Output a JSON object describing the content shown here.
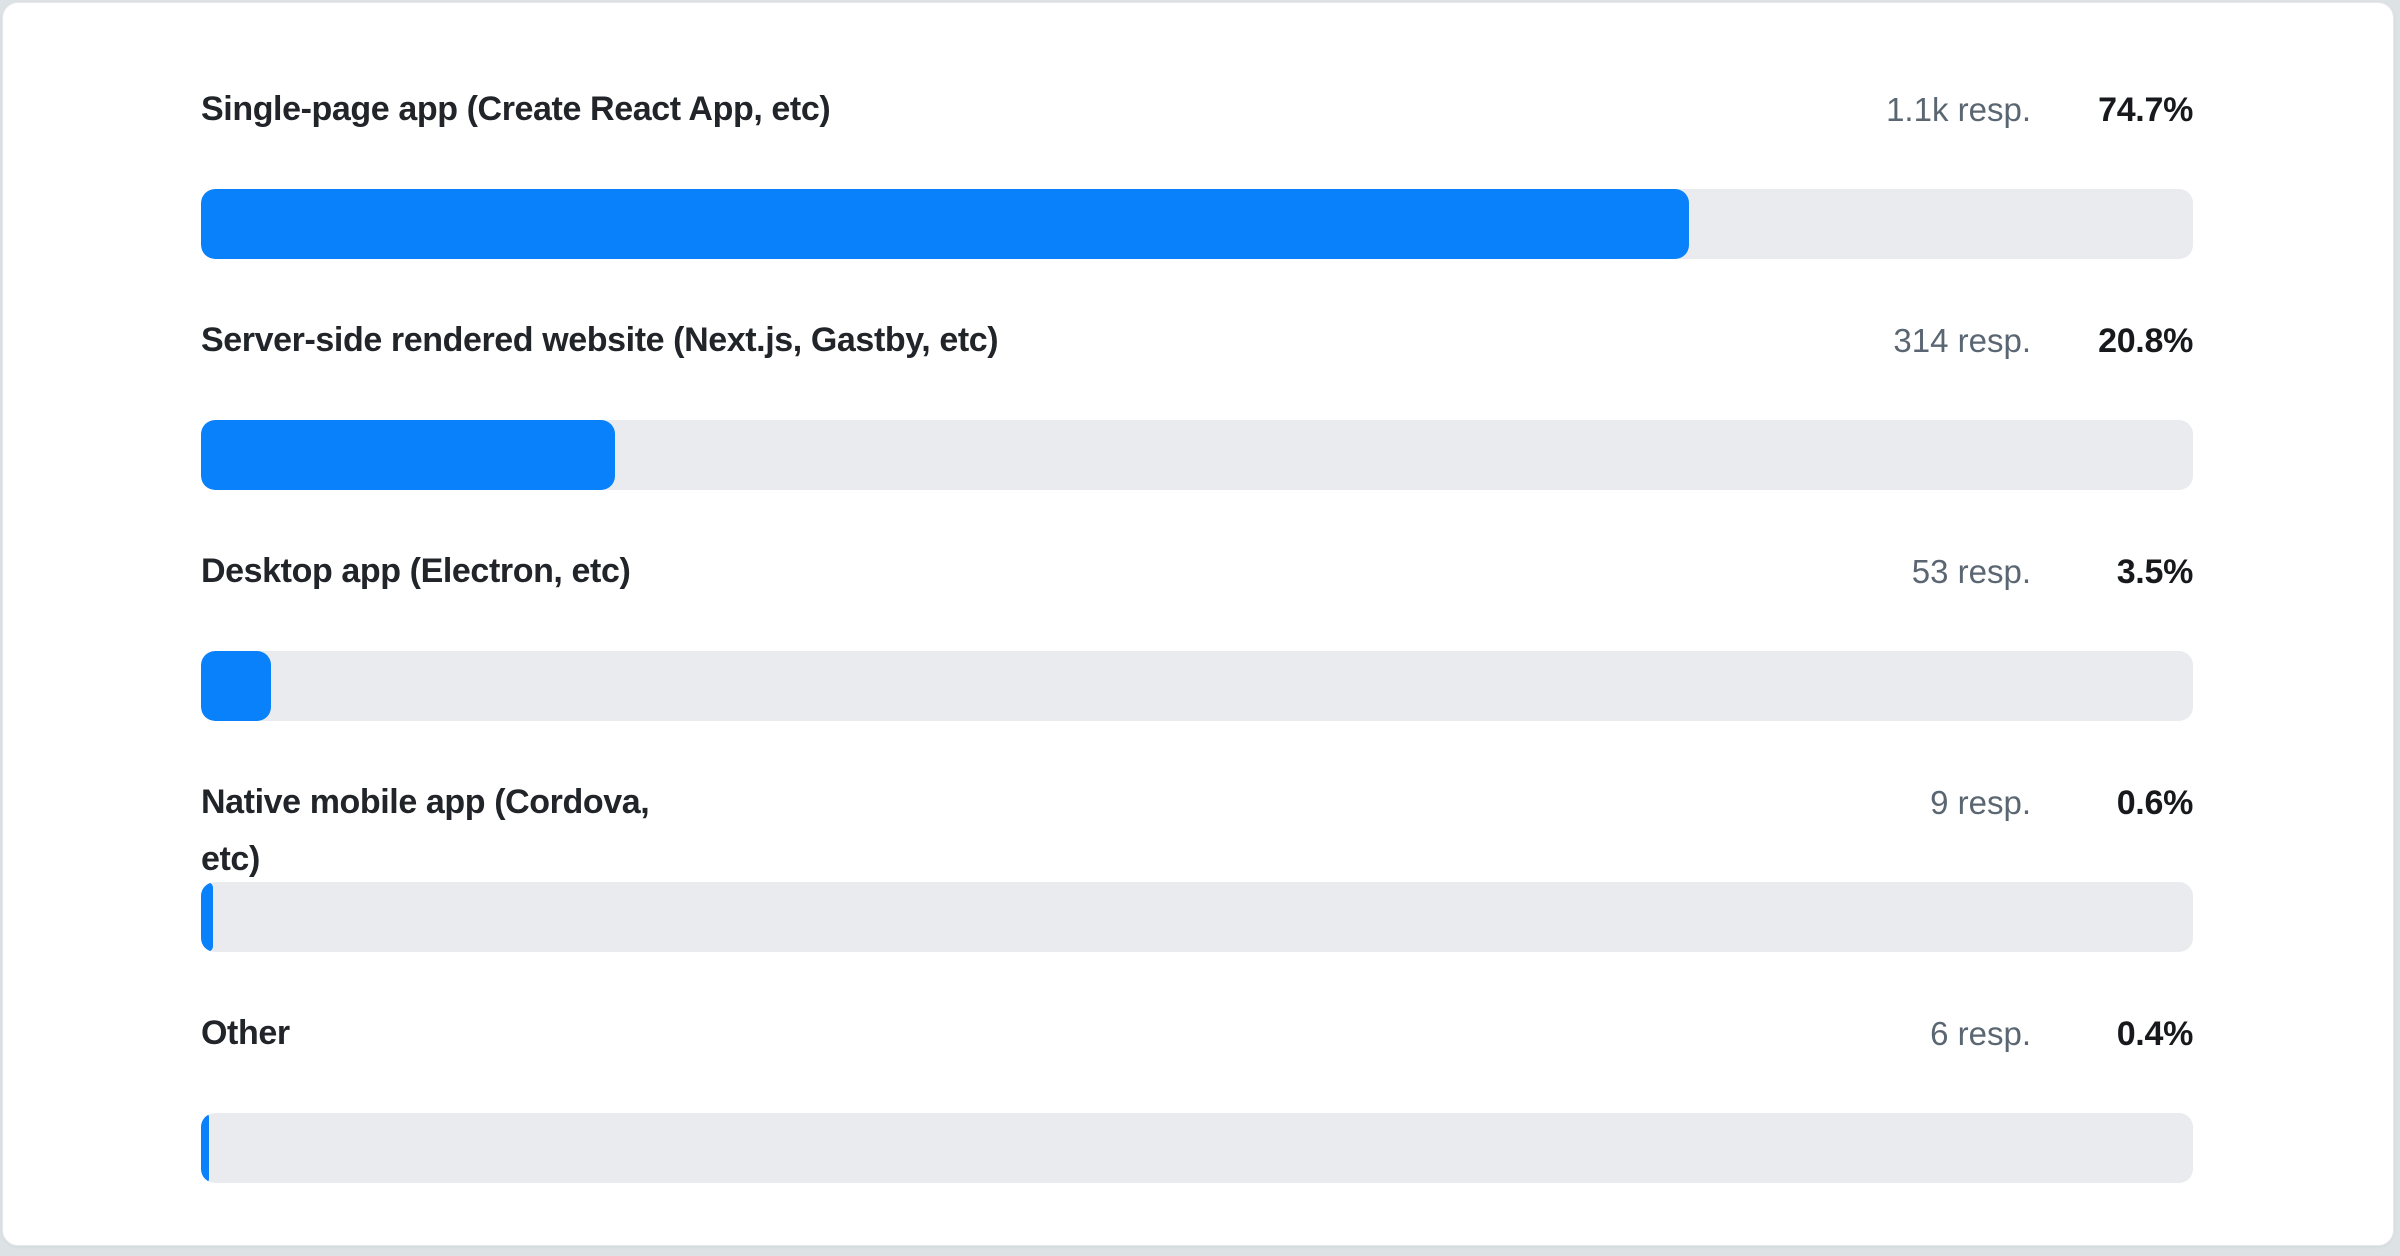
{
  "page": {
    "background_color": "#dde2e5",
    "card": {
      "background_color": "#ffffff",
      "border_color": "#e6e9eb"
    }
  },
  "chart_data": {
    "type": "bar",
    "orientation": "horizontal",
    "title": "",
    "xlabel": "",
    "ylabel": "",
    "unit": "%",
    "xlim": [
      0,
      100
    ],
    "grid": false,
    "legend": false,
    "bar_color": "#0881fb",
    "track_color": "#e9ebee",
    "categories": [
      "Single-page app (Create React App, etc)",
      "Server-side rendered website (Next.js, Gastby, etc)",
      "Desktop app (Electron, etc)",
      "Native mobile app (Cordova,\netc)",
      "Other"
    ],
    "values": [
      74.7,
      20.8,
      3.5,
      0.6,
      0.4
    ],
    "rows": [
      {
        "label": "Single-page app (Create React App, etc)",
        "responses": "1.1k resp.",
        "percent_label": "74.7%",
        "percent": 74.7
      },
      {
        "label": "Server-side rendered website (Next.js, Gastby, etc)",
        "responses": "314 resp.",
        "percent_label": "20.8%",
        "percent": 20.8
      },
      {
        "label": "Desktop app (Electron, etc)",
        "responses": "53 resp.",
        "percent_label": "3.5%",
        "percent": 3.5
      },
      {
        "label": "Native mobile app (Cordova,\netc)",
        "responses": "9 resp.",
        "percent_label": "0.6%",
        "percent": 0.6
      },
      {
        "label": "Other",
        "responses": "6 resp.",
        "percent_label": "0.4%",
        "percent": 0.4
      }
    ]
  }
}
